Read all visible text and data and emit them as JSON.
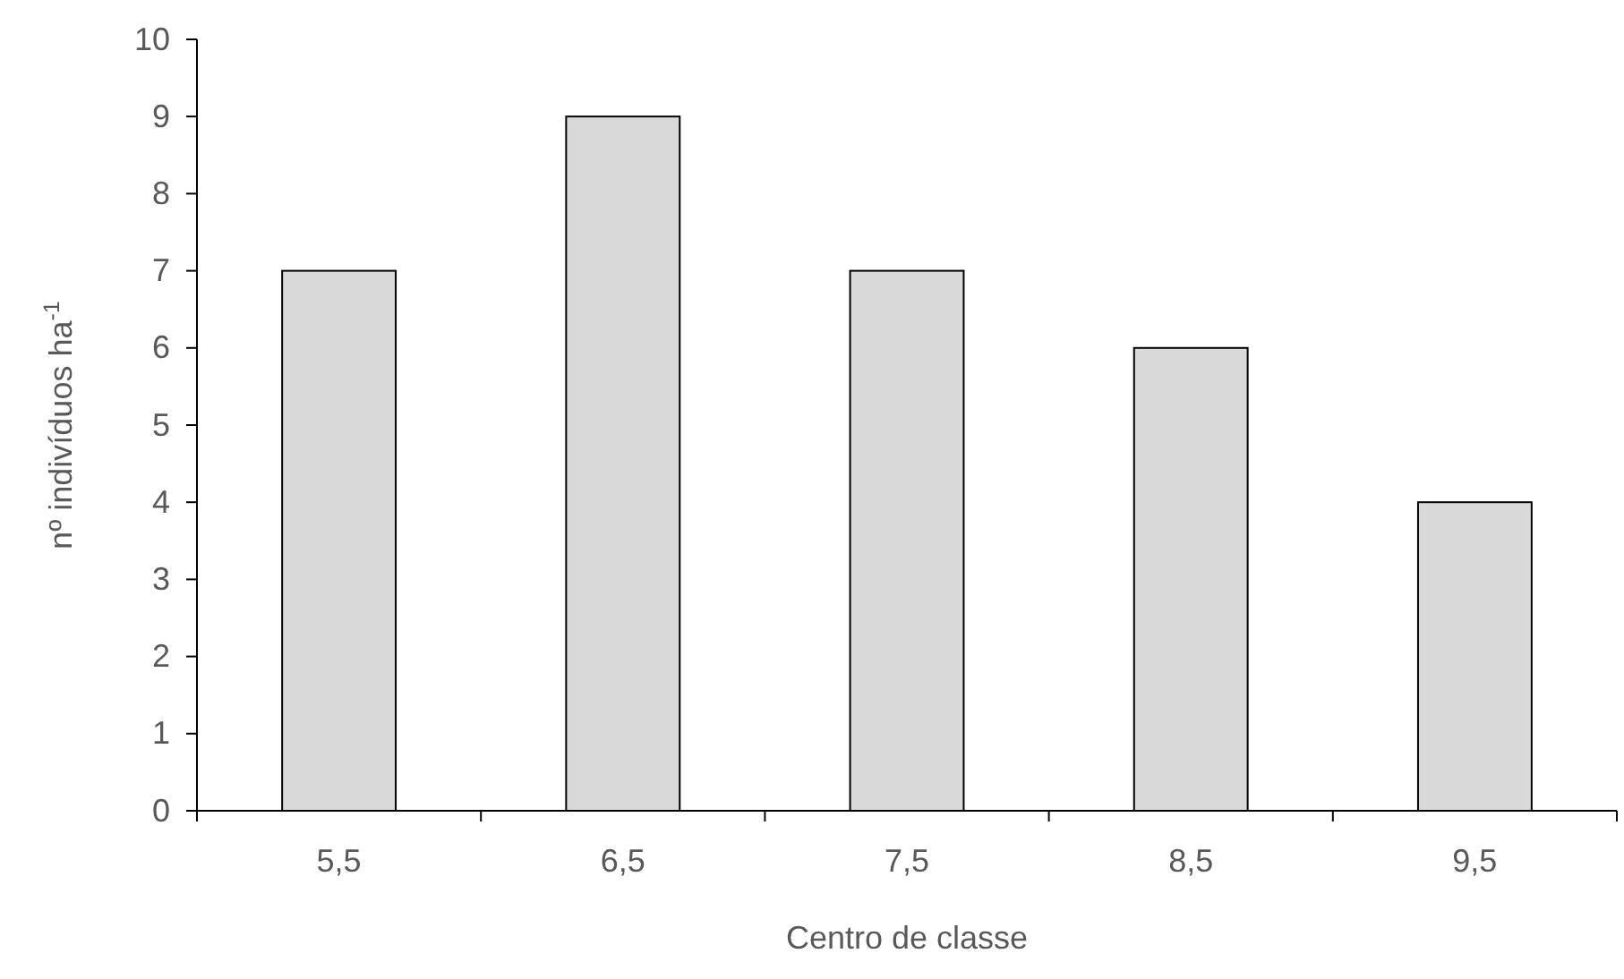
{
  "chart_data": {
    "type": "bar",
    "xlabel": "Centro de classe",
    "ylabel": "nº indivíduos ha$^{-1}$",
    "categories": [
      "5,5",
      "6,5",
      "7,5",
      "8,5",
      "9,5"
    ],
    "values": [
      7,
      9,
      7,
      6,
      4
    ],
    "color": "#d9d9d9",
    "ylim": [
      0,
      10
    ],
    "yticks": [
      0,
      1,
      2,
      3,
      4,
      5,
      6,
      7,
      8,
      9,
      10
    ],
    "grid": false
  }
}
